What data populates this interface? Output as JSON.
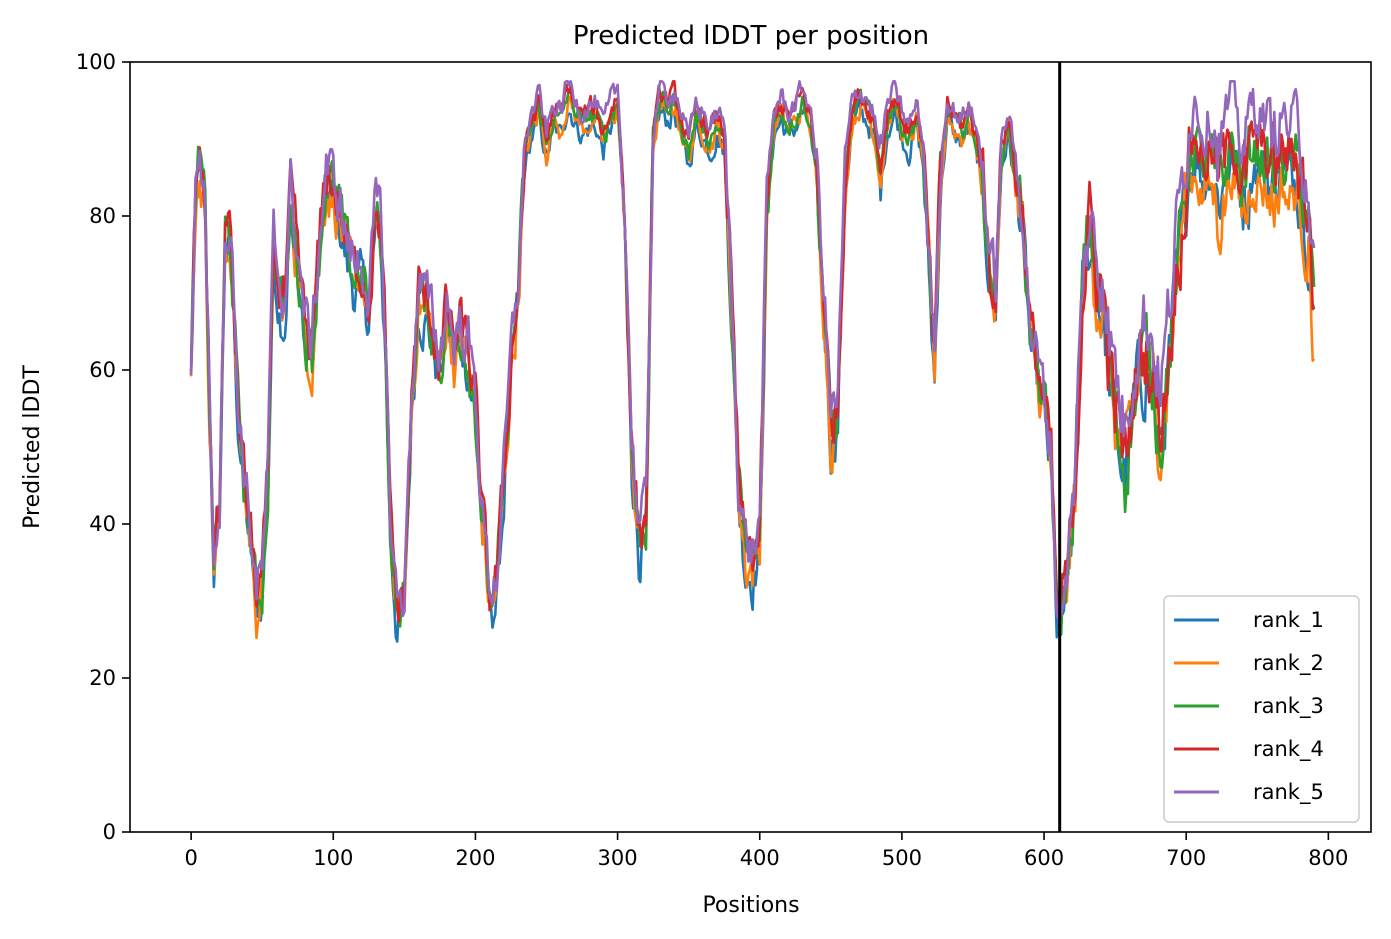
{
  "chart_data": {
    "type": "line",
    "title": "Predicted lDDT per position",
    "xlabel": "Positions",
    "ylabel": "Predicted lDDT",
    "xlim": [
      -43,
      830
    ],
    "ylim": [
      0,
      100
    ],
    "xticks": [
      0,
      100,
      200,
      300,
      400,
      500,
      600,
      700,
      800
    ],
    "yticks": [
      0,
      20,
      40,
      60,
      80,
      100
    ],
    "grid": false,
    "legend_position": "lower right",
    "vline_x": 611,
    "series": [
      {
        "name": "rank_1",
        "color": "#1f77b4"
      },
      {
        "name": "rank_2",
        "color": "#ff7f0e"
      },
      {
        "name": "rank_3",
        "color": "#2ca02c"
      },
      {
        "name": "rank_4",
        "color": "#d62728"
      },
      {
        "name": "rank_5",
        "color": "#9467bd"
      }
    ],
    "profile": [
      [
        0,
        60
      ],
      [
        3,
        82
      ],
      [
        6,
        87
      ],
      [
        10,
        80
      ],
      [
        13,
        55
      ],
      [
        16,
        36
      ],
      [
        20,
        42
      ],
      [
        24,
        78
      ],
      [
        28,
        76
      ],
      [
        33,
        55
      ],
      [
        38,
        44
      ],
      [
        42,
        38
      ],
      [
        46,
        30
      ],
      [
        50,
        32
      ],
      [
        54,
        45
      ],
      [
        58,
        76
      ],
      [
        62,
        70
      ],
      [
        66,
        68
      ],
      [
        70,
        82
      ],
      [
        75,
        74
      ],
      [
        80,
        65
      ],
      [
        85,
        62
      ],
      [
        90,
        75
      ],
      [
        95,
        85
      ],
      [
        100,
        83
      ],
      [
        105,
        80
      ],
      [
        110,
        75
      ],
      [
        115,
        72
      ],
      [
        120,
        73
      ],
      [
        125,
        68
      ],
      [
        130,
        80
      ],
      [
        133,
        78
      ],
      [
        137,
        62
      ],
      [
        140,
        40
      ],
      [
        145,
        28
      ],
      [
        150,
        30
      ],
      [
        155,
        55
      ],
      [
        160,
        70
      ],
      [
        165,
        68
      ],
      [
        170,
        65
      ],
      [
        175,
        60
      ],
      [
        180,
        68
      ],
      [
        185,
        62
      ],
      [
        190,
        65
      ],
      [
        195,
        62
      ],
      [
        200,
        55
      ],
      [
        205,
        40
      ],
      [
        210,
        30
      ],
      [
        215,
        32
      ],
      [
        220,
        45
      ],
      [
        225,
        60
      ],
      [
        230,
        70
      ],
      [
        235,
        88
      ],
      [
        240,
        92
      ],
      [
        245,
        94
      ],
      [
        250,
        89
      ],
      [
        255,
        93
      ],
      [
        260,
        92
      ],
      [
        265,
        96
      ],
      [
        270,
        94
      ],
      [
        275,
        92
      ],
      [
        280,
        93
      ],
      [
        285,
        93
      ],
      [
        290,
        90
      ],
      [
        295,
        93
      ],
      [
        300,
        95
      ],
      [
        305,
        80
      ],
      [
        310,
        50
      ],
      [
        315,
        38
      ],
      [
        320,
        40
      ],
      [
        325,
        90
      ],
      [
        330,
        95
      ],
      [
        335,
        94
      ],
      [
        340,
        95
      ],
      [
        345,
        92
      ],
      [
        350,
        88
      ],
      [
        355,
        93
      ],
      [
        360,
        92
      ],
      [
        365,
        90
      ],
      [
        370,
        92
      ],
      [
        375,
        90
      ],
      [
        380,
        70
      ],
      [
        385,
        45
      ],
      [
        390,
        36
      ],
      [
        395,
        35
      ],
      [
        400,
        38
      ],
      [
        405,
        80
      ],
      [
        410,
        92
      ],
      [
        415,
        94
      ],
      [
        420,
        92
      ],
      [
        425,
        93
      ],
      [
        430,
        95
      ],
      [
        435,
        93
      ],
      [
        440,
        85
      ],
      [
        445,
        70
      ],
      [
        450,
        52
      ],
      [
        455,
        55
      ],
      [
        460,
        85
      ],
      [
        465,
        93
      ],
      [
        470,
        95
      ],
      [
        475,
        94
      ],
      [
        480,
        92
      ],
      [
        485,
        86
      ],
      [
        490,
        93
      ],
      [
        495,
        95
      ],
      [
        500,
        92
      ],
      [
        505,
        90
      ],
      [
        510,
        93
      ],
      [
        515,
        88
      ],
      [
        520,
        70
      ],
      [
        523,
        60
      ],
      [
        527,
        85
      ],
      [
        532,
        94
      ],
      [
        537,
        92
      ],
      [
        542,
        91
      ],
      [
        547,
        93
      ],
      [
        552,
        90
      ],
      [
        557,
        85
      ],
      [
        562,
        72
      ],
      [
        566,
        70
      ],
      [
        570,
        88
      ],
      [
        575,
        92
      ],
      [
        580,
        85
      ],
      [
        585,
        80
      ],
      [
        590,
        65
      ],
      [
        595,
        60
      ],
      [
        600,
        55
      ],
      [
        605,
        48
      ],
      [
        609,
        28
      ],
      [
        612,
        28
      ],
      [
        617,
        34
      ],
      [
        622,
        45
      ],
      [
        627,
        70
      ],
      [
        632,
        78
      ],
      [
        637,
        72
      ],
      [
        642,
        68
      ],
      [
        647,
        58
      ],
      [
        652,
        52
      ],
      [
        657,
        47
      ],
      [
        662,
        55
      ],
      [
        667,
        60
      ],
      [
        672,
        62
      ],
      [
        677,
        58
      ],
      [
        682,
        52
      ],
      [
        687,
        60
      ],
      [
        692,
        70
      ],
      [
        697,
        78
      ],
      [
        702,
        88
      ],
      [
        707,
        90
      ],
      [
        712,
        86
      ],
      [
        717,
        88
      ],
      [
        722,
        84
      ],
      [
        727,
        86
      ],
      [
        732,
        90
      ],
      [
        737,
        86
      ],
      [
        742,
        84
      ],
      [
        747,
        89
      ],
      [
        752,
        88
      ],
      [
        757,
        87
      ],
      [
        762,
        85
      ],
      [
        767,
        88
      ],
      [
        772,
        86
      ],
      [
        777,
        87
      ],
      [
        782,
        84
      ],
      [
        786,
        80
      ],
      [
        790,
        66
      ]
    ]
  }
}
